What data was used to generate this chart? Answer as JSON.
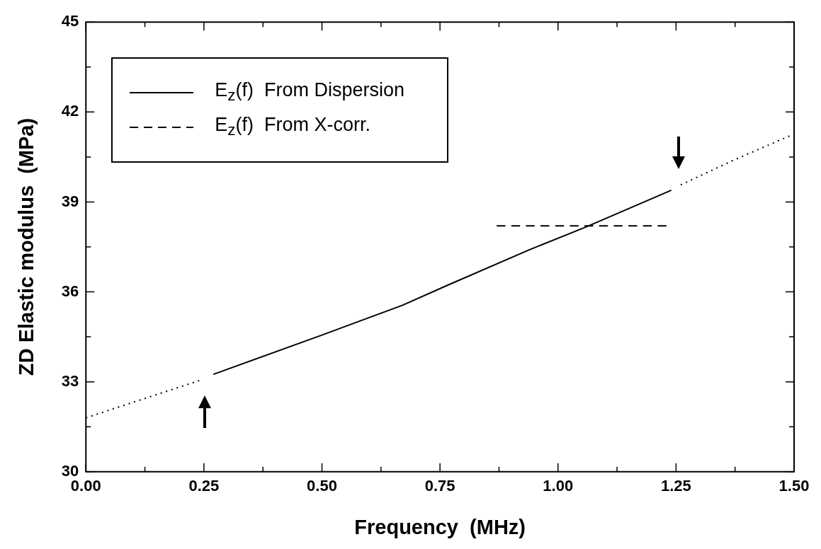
{
  "chart_data": {
    "type": "line",
    "xlabel": "Frequency  (MHz)",
    "ylabel": "ZD Elastic modulus  (MPa)",
    "xlim": [
      0,
      1.5
    ],
    "ylim": [
      30,
      45
    ],
    "xticks": [
      {
        "value": 0,
        "label": "0.00"
      },
      {
        "value": 0.125,
        "label": null
      },
      {
        "value": 0.25,
        "label": "0.25"
      },
      {
        "value": 0.375,
        "label": null
      },
      {
        "value": 0.5,
        "label": "0.50"
      },
      {
        "value": 0.625,
        "label": null
      },
      {
        "value": 0.75,
        "label": "0.75"
      },
      {
        "value": 0.875,
        "label": null
      },
      {
        "value": 1,
        "label": "1.00"
      },
      {
        "value": 1.125,
        "label": null
      },
      {
        "value": 1.25,
        "label": "1.25"
      },
      {
        "value": 1.375,
        "label": null
      },
      {
        "value": 1.5,
        "label": "1.50"
      }
    ],
    "yticks": [
      30,
      {
        "value": 31.5,
        "label": null
      },
      33,
      {
        "value": 34.5,
        "label": null
      },
      36,
      {
        "value": 37.5,
        "label": null
      },
      39,
      {
        "value": 40.5,
        "label": null
      },
      42,
      {
        "value": 43.5,
        "label": null
      },
      45
    ],
    "legend": "top left",
    "marker": "none",
    "series": [
      {
        "name": "E$_{z}$(f)  From Dispersion",
        "color": "#000000",
        "line_style": "solid",
        "x": [
          0.27,
          0.5,
          0.67,
          0.77,
          0.94,
          1.06,
          1.24
        ],
        "values": [
          33.25,
          34.56,
          35.55,
          36.25,
          37.41,
          38.17,
          39.39
        ]
      },
      {
        "name": "E$_{z}$(f)  From X-corr.",
        "color": "#000000",
        "line_style": "dashed",
        "x": [
          0.87,
          1.23
        ],
        "values": [
          38.2,
          38.2
        ]
      },
      {
        "color": "#000000",
        "line_style": "dotted",
        "x": [
          0,
          0.12,
          0.24
        ],
        "values": [
          31.8,
          32.42,
          33.04
        ]
      },
      {
        "color": "#000000",
        "line_style": "dotted",
        "x": [
          1.26,
          1.37,
          1.49
        ],
        "values": [
          39.57,
          40.38,
          41.2
        ]
      }
    ]
  }
}
